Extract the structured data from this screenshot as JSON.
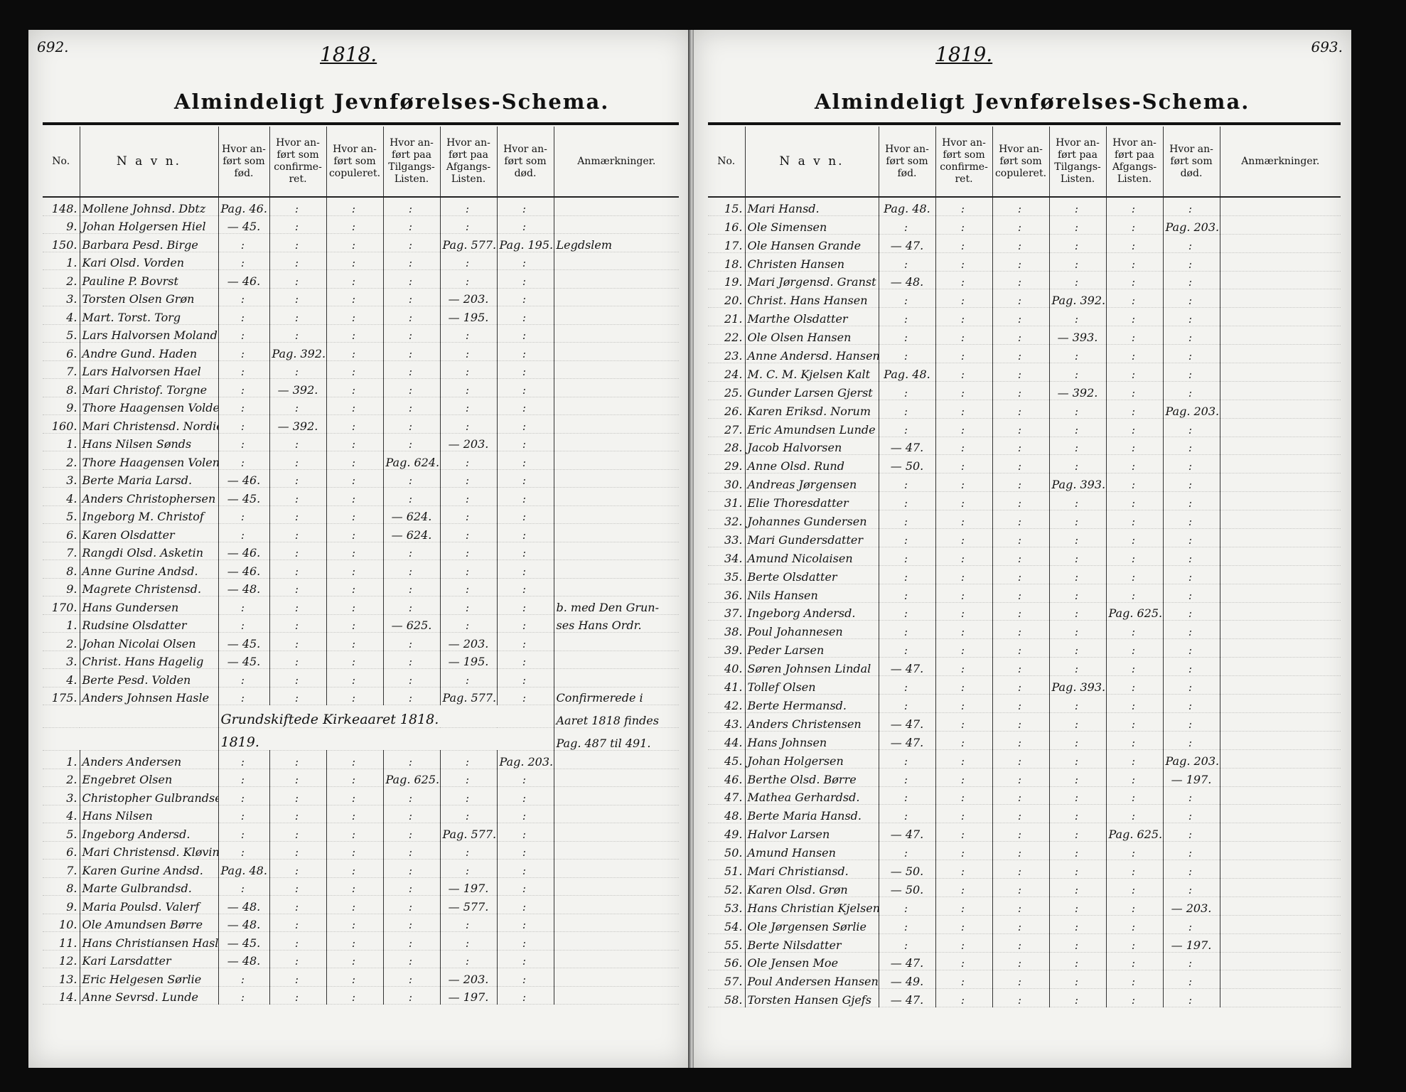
{
  "left": {
    "page_number": "692.",
    "year": "1818.",
    "title": "Almindeligt Jevnførelses-Schema.",
    "headers": [
      "No.",
      "N a v n.",
      "",
      "Hvor an-\nført som\nfød.",
      "Hvor an-\nført som\nconfirme-\nret.",
      "Hvor an-\nført som\ncopuleret.",
      "Hvor an-\nført paa\nTilgangs-\nListen.",
      "Hvor an-\nført paa\nAfgangs-\nListen.",
      "Hvor an-\nført som\ndød.",
      "Anmærkninger."
    ],
    "rows": [
      {
        "no": "148.",
        "name": "Mollene Johnsd. Dbtz",
        "fod": "Pag. 46.",
        "conf": "",
        "cop": "",
        "til": "",
        "afg": "",
        "dod": "",
        "note": ""
      },
      {
        "no": "9.",
        "name": "Johan Holgersen Hiel",
        "fod": "— 45.",
        "conf": "",
        "cop": "",
        "til": "",
        "afg": "",
        "dod": "",
        "note": ""
      },
      {
        "no": "150.",
        "name": "Barbara Pesd. Birge",
        "fod": "",
        "conf": "",
        "cop": "",
        "til": "",
        "afg": "Pag. 577.",
        "dod": "Pag. 195.",
        "note": "Legdslem"
      },
      {
        "no": "1.",
        "name": "Kari Olsd. Vorden",
        "fod": "",
        "conf": "",
        "cop": "",
        "til": "",
        "afg": "",
        "dod": "",
        "note": ""
      },
      {
        "no": "2.",
        "name": "Pauline P. Bovrst",
        "fod": "— 46.",
        "conf": "",
        "cop": "",
        "til": "",
        "afg": "",
        "dod": "",
        "note": ""
      },
      {
        "no": "3.",
        "name": "Torsten Olsen Grøn",
        "fod": "",
        "conf": "",
        "cop": "",
        "til": "",
        "afg": "— 203.",
        "dod": "",
        "note": ""
      },
      {
        "no": "4.",
        "name": "Mart. Torst. Torg",
        "fod": "",
        "conf": "",
        "cop": "",
        "til": "",
        "afg": "— 195.",
        "dod": "",
        "note": ""
      },
      {
        "no": "5.",
        "name": "Lars Halvorsen Moland",
        "fod": "",
        "conf": "",
        "cop": "",
        "til": "",
        "afg": "",
        "dod": "",
        "note": ""
      },
      {
        "no": "6.",
        "name": "Andre Gund. Haden",
        "fod": "",
        "conf": "Pag. 392.",
        "cop": "",
        "til": "",
        "afg": "",
        "dod": "",
        "note": ""
      },
      {
        "no": "7.",
        "name": "Lars Halvorsen Hael",
        "fod": "",
        "conf": "",
        "cop": "",
        "til": "",
        "afg": "",
        "dod": "",
        "note": ""
      },
      {
        "no": "8.",
        "name": "Mari Christof. Torgne",
        "fod": "",
        "conf": "— 392.",
        "cop": "",
        "til": "",
        "afg": "",
        "dod": "",
        "note": ""
      },
      {
        "no": "9.",
        "name": "Thore Haagensen Volden",
        "fod": "",
        "conf": "",
        "cop": "",
        "til": "",
        "afg": "",
        "dod": "",
        "note": ""
      },
      {
        "no": "160.",
        "name": "Mari Christensd. Nordie",
        "fod": "",
        "conf": "— 392.",
        "cop": "",
        "til": "",
        "afg": "",
        "dod": "",
        "note": ""
      },
      {
        "no": "1.",
        "name": "Hans Nilsen Sønds",
        "fod": "",
        "conf": "",
        "cop": "",
        "til": "",
        "afg": "— 203.",
        "dod": "",
        "note": ""
      },
      {
        "no": "2.",
        "name": "Thore Haagensen Volen",
        "fod": "",
        "conf": "",
        "cop": "",
        "til": "Pag. 624.",
        "afg": "",
        "dod": "",
        "note": ""
      },
      {
        "no": "3.",
        "name": "Berte Maria Larsd.",
        "fod": "— 46.",
        "conf": "",
        "cop": "",
        "til": "",
        "afg": "",
        "dod": "",
        "note": ""
      },
      {
        "no": "4.",
        "name": "Anders Christophersen",
        "fod": "— 45.",
        "conf": "",
        "cop": "",
        "til": "",
        "afg": "",
        "dod": "",
        "note": ""
      },
      {
        "no": "5.",
        "name": "Ingeborg M. Christof",
        "fod": "",
        "conf": "",
        "cop": "",
        "til": "— 624.",
        "afg": "",
        "dod": "",
        "note": ""
      },
      {
        "no": "6.",
        "name": "Karen Olsdatter",
        "fod": "",
        "conf": "",
        "cop": "",
        "til": "— 624.",
        "afg": "",
        "dod": "",
        "note": ""
      },
      {
        "no": "7.",
        "name": "Rangdi Olsd. Asketin",
        "fod": "— 46.",
        "conf": "",
        "cop": "",
        "til": "",
        "afg": "",
        "dod": "",
        "note": ""
      },
      {
        "no": "8.",
        "name": "Anne Gurine Andsd.",
        "fod": "— 46.",
        "conf": "",
        "cop": "",
        "til": "",
        "afg": "",
        "dod": "",
        "note": ""
      },
      {
        "no": "9.",
        "name": "Magrete Christensd.",
        "fod": "— 48.",
        "conf": "",
        "cop": "",
        "til": "",
        "afg": "",
        "dod": "",
        "note": ""
      },
      {
        "no": "170.",
        "name": "Hans Gundersen",
        "fod": "",
        "conf": "",
        "cop": "",
        "til": "",
        "afg": "",
        "dod": "",
        "note": "b. med Den Grun-"
      },
      {
        "no": "1.",
        "name": "Rudsine Olsdatter",
        "fod": "",
        "conf": "",
        "cop": "",
        "til": "— 625.",
        "afg": "",
        "dod": "",
        "note": "ses Hans Ordr."
      },
      {
        "no": "2.",
        "name": "Johan Nicolai Olsen",
        "fod": "— 45.",
        "conf": "",
        "cop": "",
        "til": "",
        "afg": "— 203.",
        "dod": "",
        "note": ""
      },
      {
        "no": "3.",
        "name": "Christ. Hans Hagelig",
        "fod": "— 45.",
        "conf": "",
        "cop": "",
        "til": "",
        "afg": "— 195.",
        "dod": "",
        "note": ""
      },
      {
        "no": "4.",
        "name": "Berte Pesd. Volden",
        "fod": "",
        "conf": "",
        "cop": "",
        "til": "",
        "afg": "",
        "dod": "",
        "note": ""
      },
      {
        "no": "175.",
        "name": "Anders Johnsen Hasle",
        "fod": "",
        "conf": "",
        "cop": "",
        "til": "",
        "afg": "Pag. 577.",
        "dod": "",
        "note": "Confirmerede i"
      }
    ],
    "closing_note": "Grundskiftede Kirkeaaret 1818.",
    "note_cont": [
      "Aaret 1818 findes",
      "Pag. 487 til 491."
    ],
    "sub_year": "1819.",
    "rows2": [
      {
        "no": "1.",
        "name": "Anders Andersen",
        "fod": "",
        "conf": "",
        "cop": "",
        "til": "",
        "afg": "",
        "dod": "Pag. 203.",
        "note": ""
      },
      {
        "no": "2.",
        "name": "Engebret Olsen",
        "fod": "",
        "conf": "",
        "cop": "",
        "til": "Pag. 625.",
        "afg": "",
        "dod": "",
        "note": ""
      },
      {
        "no": "3.",
        "name": "Christopher Gulbrandsen",
        "fod": "",
        "conf": "",
        "cop": "",
        "til": "",
        "afg": "",
        "dod": "",
        "note": ""
      },
      {
        "no": "4.",
        "name": "Hans Nilsen",
        "fod": "",
        "conf": "",
        "cop": "",
        "til": "",
        "afg": "",
        "dod": "",
        "note": ""
      },
      {
        "no": "5.",
        "name": "Ingeborg Andersd.",
        "fod": "",
        "conf": "",
        "cop": "",
        "til": "",
        "afg": "Pag. 577.",
        "dod": "",
        "note": ""
      },
      {
        "no": "6.",
        "name": "Mari Christensd. Kløvin",
        "fod": "",
        "conf": "",
        "cop": "",
        "til": "",
        "afg": "",
        "dod": "",
        "note": ""
      },
      {
        "no": "7.",
        "name": "Karen Gurine Andsd.",
        "fod": "Pag. 48.",
        "conf": "",
        "cop": "",
        "til": "",
        "afg": "",
        "dod": "",
        "note": ""
      },
      {
        "no": "8.",
        "name": "Marte Gulbrandsd.",
        "fod": "",
        "conf": "",
        "cop": "",
        "til": "",
        "afg": "— 197.",
        "dod": "",
        "note": ""
      },
      {
        "no": "9.",
        "name": "Maria Poulsd. Valerf",
        "fod": "— 48.",
        "conf": "",
        "cop": "",
        "til": "",
        "afg": "— 577.",
        "dod": "",
        "note": ""
      },
      {
        "no": "10.",
        "name": "Ole Amundsen Børre",
        "fod": "— 48.",
        "conf": "",
        "cop": "",
        "til": "",
        "afg": "",
        "dod": "",
        "note": ""
      },
      {
        "no": "11.",
        "name": "Hans Christiansen Hasle",
        "fod": "— 45.",
        "conf": "",
        "cop": "",
        "til": "",
        "afg": "",
        "dod": "",
        "note": ""
      },
      {
        "no": "12.",
        "name": "Kari Larsdatter",
        "fod": "— 48.",
        "conf": "",
        "cop": "",
        "til": "",
        "afg": "",
        "dod": "",
        "note": ""
      },
      {
        "no": "13.",
        "name": "Eric Helgesen Sørlie",
        "fod": "",
        "conf": "",
        "cop": "",
        "til": "",
        "afg": "— 203.",
        "dod": "",
        "note": ""
      },
      {
        "no": "14.",
        "name": "Anne Sevrsd. Lunde",
        "fod": "",
        "conf": "",
        "cop": "",
        "til": "",
        "afg": "— 197.",
        "dod": "",
        "note": ""
      }
    ]
  },
  "right": {
    "page_number": "693.",
    "year": "1819.",
    "title": "Almindeligt Jevnførelses-Schema.",
    "headers": [
      "No.",
      "N a v n.",
      "",
      "Hvor an-\nført som\nfød.",
      "Hvor an-\nført som\nconfirme-\nret.",
      "Hvor an-\nført som\ncopuleret.",
      "Hvor an-\nført paa\nTilgangs-\nListen.",
      "Hvor an-\nført paa\nAfgangs-\nListen.",
      "Hvor an-\nført som\ndød.",
      "Anmærkninger."
    ],
    "rows": [
      {
        "no": "15.",
        "name": "Mari Hansd.",
        "fod": "Pag. 48.",
        "conf": "",
        "cop": "",
        "til": "",
        "afg": "",
        "dod": "",
        "note": ""
      },
      {
        "no": "16.",
        "name": "Ole Simensen",
        "fod": "",
        "conf": "",
        "cop": "",
        "til": "",
        "afg": "",
        "dod": "Pag. 203.",
        "note": ""
      },
      {
        "no": "17.",
        "name": "Ole Hansen Grande",
        "fod": "— 47.",
        "conf": "",
        "cop": "",
        "til": "",
        "afg": "",
        "dod": "",
        "note": ""
      },
      {
        "no": "18.",
        "name": "Christen Hansen",
        "fod": "",
        "conf": "",
        "cop": "",
        "til": "",
        "afg": "",
        "dod": "",
        "note": ""
      },
      {
        "no": "19.",
        "name": "Mari Jørgensd. Granst",
        "fod": "— 48.",
        "conf": "",
        "cop": "",
        "til": "",
        "afg": "",
        "dod": "",
        "note": ""
      },
      {
        "no": "20.",
        "name": "Christ. Hans Hansen",
        "fod": "",
        "conf": "",
        "cop": "",
        "til": "Pag. 392.",
        "afg": "",
        "dod": "",
        "note": ""
      },
      {
        "no": "21.",
        "name": "Marthe Olsdatter",
        "fod": "",
        "conf": "",
        "cop": "",
        "til": "",
        "afg": "",
        "dod": "",
        "note": ""
      },
      {
        "no": "22.",
        "name": "Ole Olsen Hansen",
        "fod": "",
        "conf": "",
        "cop": "",
        "til": "— 393.",
        "afg": "",
        "dod": "",
        "note": ""
      },
      {
        "no": "23.",
        "name": "Anne Andersd. Hansen",
        "fod": "",
        "conf": "",
        "cop": "",
        "til": "",
        "afg": "",
        "dod": "",
        "note": ""
      },
      {
        "no": "24.",
        "name": "M. C. M. Kjelsen Kalt",
        "fod": "Pag. 48.",
        "conf": "",
        "cop": "",
        "til": "",
        "afg": "",
        "dod": "",
        "note": ""
      },
      {
        "no": "25.",
        "name": "Gunder Larsen Gjerst",
        "fod": "",
        "conf": "",
        "cop": "",
        "til": "— 392.",
        "afg": "",
        "dod": "",
        "note": ""
      },
      {
        "no": "26.",
        "name": "Karen Eriksd. Norum",
        "fod": "",
        "conf": "",
        "cop": "",
        "til": "",
        "afg": "",
        "dod": "Pag. 203.",
        "note": ""
      },
      {
        "no": "27.",
        "name": "Eric Amundsen Lunde",
        "fod": "",
        "conf": "",
        "cop": "",
        "til": "",
        "afg": "",
        "dod": "",
        "note": ""
      },
      {
        "no": "28.",
        "name": "Jacob Halvorsen",
        "fod": "— 47.",
        "conf": "",
        "cop": "",
        "til": "",
        "afg": "",
        "dod": "",
        "note": ""
      },
      {
        "no": "29.",
        "name": "Anne Olsd. Rund",
        "fod": "— 50.",
        "conf": "",
        "cop": "",
        "til": "",
        "afg": "",
        "dod": "",
        "note": ""
      },
      {
        "no": "30.",
        "name": "Andreas Jørgensen",
        "fod": "",
        "conf": "",
        "cop": "",
        "til": "Pag. 393.",
        "afg": "",
        "dod": "",
        "note": ""
      },
      {
        "no": "31.",
        "name": "Elie Thoresdatter",
        "fod": "",
        "conf": "",
        "cop": "",
        "til": "",
        "afg": "",
        "dod": "",
        "note": ""
      },
      {
        "no": "32.",
        "name": "Johannes Gundersen",
        "fod": "",
        "conf": "",
        "cop": "",
        "til": "",
        "afg": "",
        "dod": "",
        "note": ""
      },
      {
        "no": "33.",
        "name": "Mari Gundersdatter",
        "fod": "",
        "conf": "",
        "cop": "",
        "til": "",
        "afg": "",
        "dod": "",
        "note": ""
      },
      {
        "no": "34.",
        "name": "Amund Nicolaisen",
        "fod": "",
        "conf": "",
        "cop": "",
        "til": "",
        "afg": "",
        "dod": "",
        "note": ""
      },
      {
        "no": "35.",
        "name": "Berte Olsdatter",
        "fod": "",
        "conf": "",
        "cop": "",
        "til": "",
        "afg": "",
        "dod": "",
        "note": ""
      },
      {
        "no": "36.",
        "name": "Nils Hansen",
        "fod": "",
        "conf": "",
        "cop": "",
        "til": "",
        "afg": "",
        "dod": "",
        "note": ""
      },
      {
        "no": "37.",
        "name": "Ingeborg Andersd.",
        "fod": "",
        "conf": "",
        "cop": "",
        "til": "",
        "afg": "Pag. 625.",
        "dod": "",
        "note": ""
      },
      {
        "no": "38.",
        "name": "Poul Johannesen",
        "fod": "",
        "conf": "",
        "cop": "",
        "til": "",
        "afg": "",
        "dod": "",
        "note": ""
      },
      {
        "no": "39.",
        "name": "Peder Larsen",
        "fod": "",
        "conf": "",
        "cop": "",
        "til": "",
        "afg": "",
        "dod": "",
        "note": ""
      },
      {
        "no": "40.",
        "name": "Søren Johnsen Lindal",
        "fod": "— 47.",
        "conf": "",
        "cop": "",
        "til": "",
        "afg": "",
        "dod": "",
        "note": ""
      },
      {
        "no": "41.",
        "name": "Tollef Olsen",
        "fod": "",
        "conf": "",
        "cop": "",
        "til": "Pag. 393.",
        "afg": "",
        "dod": "",
        "note": ""
      },
      {
        "no": "42.",
        "name": "Berte Hermansd.",
        "fod": "",
        "conf": "",
        "cop": "",
        "til": "",
        "afg": "",
        "dod": "",
        "note": ""
      },
      {
        "no": "43.",
        "name": "Anders Christensen",
        "fod": "— 47.",
        "conf": "",
        "cop": "",
        "til": "",
        "afg": "",
        "dod": "",
        "note": ""
      },
      {
        "no": "44.",
        "name": "Hans Johnsen",
        "fod": "— 47.",
        "conf": "",
        "cop": "",
        "til": "",
        "afg": "",
        "dod": "",
        "note": ""
      },
      {
        "no": "45.",
        "name": "Johan Holgersen",
        "fod": "",
        "conf": "",
        "cop": "",
        "til": "",
        "afg": "",
        "dod": "Pag. 203.",
        "note": ""
      },
      {
        "no": "46.",
        "name": "Berthe Olsd. Børre",
        "fod": "",
        "conf": "",
        "cop": "",
        "til": "",
        "afg": "",
        "dod": "— 197.",
        "note": ""
      },
      {
        "no": "47.",
        "name": "Mathea Gerhardsd.",
        "fod": "",
        "conf": "",
        "cop": "",
        "til": "",
        "afg": "",
        "dod": "",
        "note": ""
      },
      {
        "no": "48.",
        "name": "Berte Maria Hansd.",
        "fod": "",
        "conf": "",
        "cop": "",
        "til": "",
        "afg": "",
        "dod": "",
        "note": ""
      },
      {
        "no": "49.",
        "name": "Halvor Larsen",
        "fod": "— 47.",
        "conf": "",
        "cop": "",
        "til": "",
        "afg": "Pag. 625.",
        "dod": "",
        "note": ""
      },
      {
        "no": "50.",
        "name": "Amund Hansen",
        "fod": "",
        "conf": "",
        "cop": "",
        "til": "",
        "afg": "",
        "dod": "",
        "note": ""
      },
      {
        "no": "51.",
        "name": "Mari Christiansd.",
        "fod": "— 50.",
        "conf": "",
        "cop": "",
        "til": "",
        "afg": "",
        "dod": "",
        "note": ""
      },
      {
        "no": "52.",
        "name": "Karen Olsd. Grøn",
        "fod": "— 50.",
        "conf": "",
        "cop": "",
        "til": "",
        "afg": "",
        "dod": "",
        "note": ""
      },
      {
        "no": "53.",
        "name": "Hans Christian Kjelsen",
        "fod": "",
        "conf": "",
        "cop": "",
        "til": "",
        "afg": "",
        "dod": "— 203.",
        "note": ""
      },
      {
        "no": "54.",
        "name": "Ole Jørgensen Sørlie",
        "fod": "",
        "conf": "",
        "cop": "",
        "til": "",
        "afg": "",
        "dod": "",
        "note": ""
      },
      {
        "no": "55.",
        "name": "Berte Nilsdatter",
        "fod": "",
        "conf": "",
        "cop": "",
        "til": "",
        "afg": "",
        "dod": "— 197.",
        "note": ""
      },
      {
        "no": "56.",
        "name": "Ole Jensen Moe",
        "fod": "— 47.",
        "conf": "",
        "cop": "",
        "til": "",
        "afg": "",
        "dod": "",
        "note": ""
      },
      {
        "no": "57.",
        "name": "Poul Andersen Hansen",
        "fod": "— 49.",
        "conf": "",
        "cop": "",
        "til": "",
        "afg": "",
        "dod": "",
        "note": ""
      },
      {
        "no": "58.",
        "name": "Torsten Hansen Gjefs",
        "fod": "— 47.",
        "conf": "",
        "cop": "",
        "til": "",
        "afg": "",
        "dod": "",
        "note": ""
      }
    ]
  }
}
